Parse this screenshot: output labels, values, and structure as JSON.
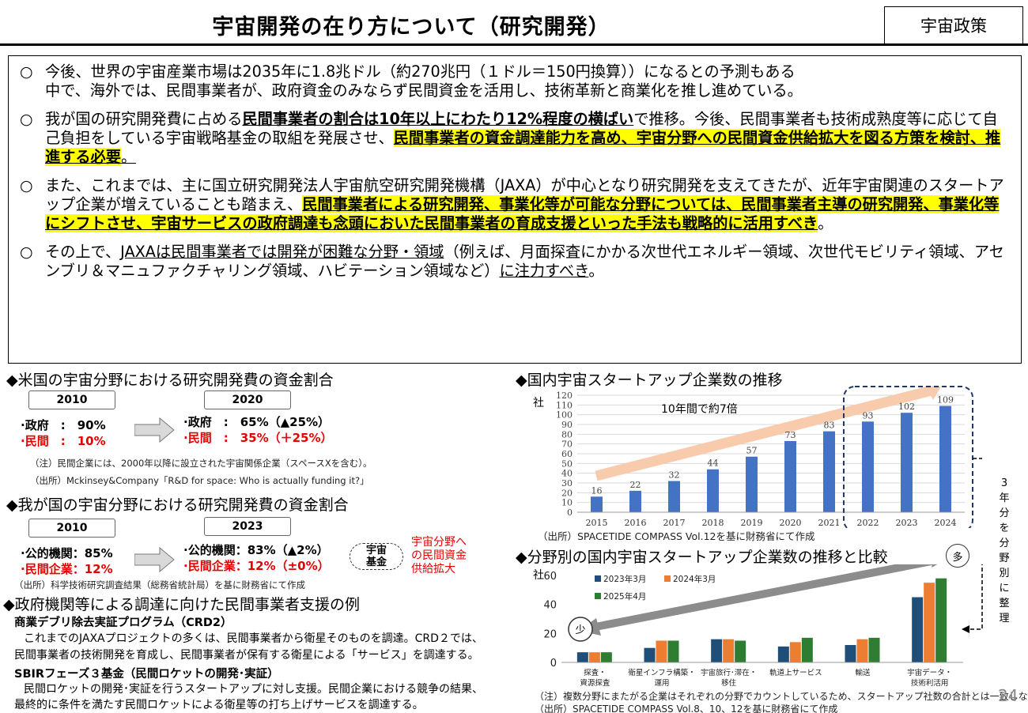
{
  "header": {
    "title": "宇宙開発の在り方について（研究開発）",
    "tag": "宇宙政策"
  },
  "paragraphs": {
    "bullet": "○",
    "p1": {
      "line1": "今後、世界の宇宙産業市場は2035年に1.8兆ドル（約270兆円（１ドル＝150円換算））になるとの予測もある",
      "line2": "中で、海外では、民間事業者が、政府資金のみならず民間資金を活用し、技術革新と商業化を推し進めている。"
    },
    "p2": {
      "a": "我が国の研究開発費に占める",
      "b": "民間事業者の割合は10年以上にわたり12%程度の横ばい",
      "c": "で推移。今後、民間事業者も技術成熟度等に応じて自己負担をしている宇宙戦略基金の取組を発展させ、",
      "d": "民間事業者の資金調達能力を高め、宇宙分野への民間資金供給拡大を図る方策を検討、推進する必要",
      "e": "。"
    },
    "p3": {
      "a": "また、これまでは、主に国立研究開発法人宇宙航空研究開発機構（JAXA）が中心となり研究開発を支えてきたが、近年宇宙関連のスタートアップ企業が増えていることも踏まえ、",
      "b": "民間事業者による研究開発、事業化等が可能な分野については、民間事業者主導の研究開発、事業化等にシフトさせ、宇宙サービスの政府調達も念頭においた民間事業者の育成支援といった手法も戦略的に活用すべき",
      "c": "。"
    },
    "p4": {
      "a": "その上で、",
      "b": "JAXAは民間事業者では開発が困難な分野・領域",
      "c": "（例えば、月面探査にかかる次世代エネルギー領域、次世代モビリティ領域、アセンブリ＆マニュファクチャリング領域、ハビテーション領域など）",
      "d": "に注力すべき",
      "e": "。"
    }
  },
  "us_section": {
    "heading": "◆米国の宇宙分野における研究開発費の資金割合",
    "year_from": "2010",
    "year_to": "2020",
    "from_gov": "·政府　:　90%",
    "from_priv": "·民間　:　10%",
    "to_gov": "·政府　:　65%（▲25%）",
    "to_priv": "·民間　:　35%（＋25%）",
    "note1": "（注）民間企業には、2000年以降に設立された宇宙関係企業（スペースXを含む）。",
    "note2": "（出所）Mckinsey&Company「R&D for space: Who is actually funding it?」"
  },
  "jp_section": {
    "heading": "◆我が国の宇宙分野における研究開発費の資金割合",
    "year_from": "2010",
    "year_to": "2023",
    "from_pub": "·公的機関：85%",
    "from_priv": "·民間企業：12%",
    "to_pub": "·公的機関：83%（▲2%）",
    "to_priv": "·民間企業：12%（±0%）",
    "pill": "宇宙\n基金",
    "red_note": "宇宙分野へ\nの民間資金\n供給拡大",
    "source": "（出所）科学技術研究調査結果（総務省統計局）を基に財務省にて作成"
  },
  "support_section": {
    "heading": "◆政府機関等による調達に向けた民間事業者支援の例",
    "crd2_title": "商業デブリ除去実証プログラム（CRD2）",
    "crd2_l1": "これまでのJAXAプロジェクトの多くは、民間事業者から衛星そのものを調達。CRD２では、",
    "crd2_l2": "民間事業者の技術開発を育成し、民間事業者が保有する衛星による「サービス」を調達する。",
    "sbir_title": "SBIRフェーズ３基金（民間ロケットの開発･実証）",
    "sbir_l1": "民間ロケットの開発･実証を行うスタートアップに対し支援。民間企業における競争の結果、",
    "sbir_l2": "最終的に条件を満たす民間ロケットによる衛星等の打ち上げサービスを調達する。"
  },
  "chart1_text": {
    "heading": "◆国内宇宙スタートアップ企業数の推移",
    "unit": "社",
    "annotation": "10年間で約7倍",
    "source": "（出所）SPACETIDE COMPASS Vol.12を基に財務省にて作成",
    "side_note": "3年分を分野別に整理"
  },
  "chart2_text": {
    "heading": "◆分野別の国内宇宙スタートアップ企業数の推移と比較",
    "unit": "社",
    "many": "多",
    "few": "少",
    "note": "（注）複数分野にまたがる企業はそれぞれの分野でカウントしているため、スタートアップ社数の合計とは一致しない。",
    "source": "（出所）SPACETIDE COMPASS Vol.8、10、12を基に財務省にて作成"
  },
  "page_number": "24",
  "colors": {
    "bar_blue": "#4472c4",
    "series_blue": "#1f4e79",
    "series_orange": "#ed7d31",
    "series_green": "#2e7d32",
    "arrow_peach": "#f8cbad",
    "highlight": "#ffff00",
    "red": "#e60000"
  },
  "chart_data": [
    {
      "type": "bar",
      "categories": [
        "2015",
        "2016",
        "2017",
        "2018",
        "2019",
        "2020",
        "2021",
        "2022",
        "2023",
        "2024"
      ],
      "values": [
        16,
        22,
        32,
        44,
        57,
        73,
        83,
        93,
        102,
        109
      ],
      "ylabel": "社",
      "ylim": [
        0,
        120
      ],
      "yticks": [
        0,
        10,
        20,
        30,
        40,
        50,
        60,
        70,
        80,
        90,
        100,
        110,
        120
      ],
      "grid": true,
      "annotation": "10年間で約7倍"
    },
    {
      "type": "bar",
      "categories": [
        "探査・資源探査",
        "衛星インフラ構築・運用",
        "宇宙旅行･滞在・移住",
        "軌道上サービス",
        "輸送",
        "宇宙データ・技術利活用"
      ],
      "series": [
        {
          "name": "2023年3月",
          "values": [
            7,
            10,
            16,
            11,
            12,
            45
          ]
        },
        {
          "name": "2024年3月",
          "values": [
            7,
            15,
            16,
            14,
            16,
            55
          ]
        },
        {
          "name": "2025年4月",
          "values": [
            7,
            15,
            15,
            17,
            17,
            58
          ]
        }
      ],
      "ylabel": "社",
      "ylim": [
        0,
        60
      ],
      "yticks": [
        0,
        20,
        40,
        60
      ],
      "legend": "top-left"
    }
  ]
}
